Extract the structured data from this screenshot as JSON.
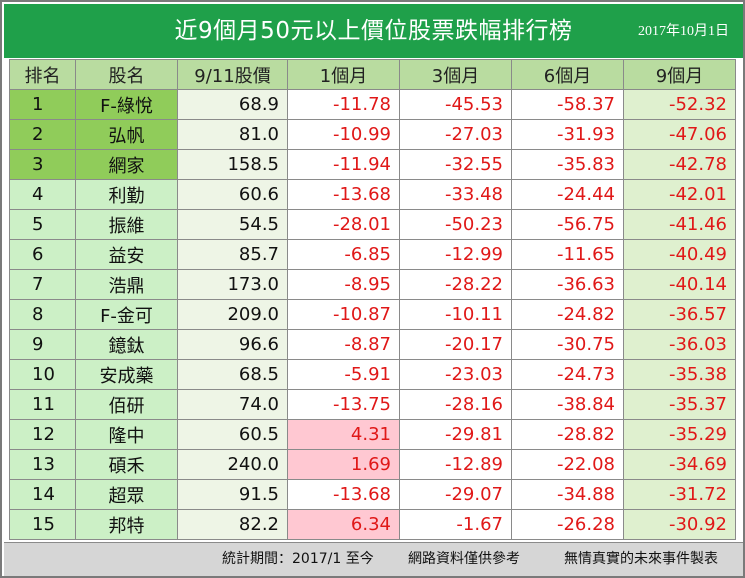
{
  "title": "近9個月50元以上價位股票跌幅排行榜",
  "date": "2017年10月1日",
  "headers": [
    "排名",
    "股名",
    "9/11股價",
    "1個月",
    "3個月",
    "6個月",
    "9個月"
  ],
  "rows": [
    {
      "rank": "1",
      "name": "F-綠悅",
      "price": "68.9",
      "m1": "-11.78",
      "m3": "-45.53",
      "m6": "-58.37",
      "m9": "-52.32"
    },
    {
      "rank": "2",
      "name": "弘帆",
      "price": "81.0",
      "m1": "-10.99",
      "m3": "-27.03",
      "m6": "-31.93",
      "m9": "-47.06"
    },
    {
      "rank": "3",
      "name": "網家",
      "price": "158.5",
      "m1": "-11.94",
      "m3": "-32.55",
      "m6": "-35.83",
      "m9": "-42.78"
    },
    {
      "rank": "4",
      "name": "利勤",
      "price": "60.6",
      "m1": "-13.68",
      "m3": "-33.48",
      "m6": "-24.44",
      "m9": "-42.01"
    },
    {
      "rank": "5",
      "name": "振維",
      "price": "54.5",
      "m1": "-28.01",
      "m3": "-50.23",
      "m6": "-56.75",
      "m9": "-41.46"
    },
    {
      "rank": "6",
      "name": "益安",
      "price": "85.7",
      "m1": "-6.85",
      "m3": "-12.99",
      "m6": "-11.65",
      "m9": "-40.49"
    },
    {
      "rank": "7",
      "name": "浩鼎",
      "price": "173.0",
      "m1": "-8.95",
      "m3": "-28.22",
      "m6": "-36.63",
      "m9": "-40.14"
    },
    {
      "rank": "8",
      "name": "F-金可",
      "price": "209.0",
      "m1": "-10.87",
      "m3": "-10.11",
      "m6": "-24.82",
      "m9": "-36.57"
    },
    {
      "rank": "9",
      "name": "鐿鈦",
      "price": "96.6",
      "m1": "-8.87",
      "m3": "-20.17",
      "m6": "-30.75",
      "m9": "-36.03"
    },
    {
      "rank": "10",
      "name": "安成藥",
      "price": "68.5",
      "m1": "-5.91",
      "m3": "-23.03",
      "m6": "-24.73",
      "m9": "-35.38"
    },
    {
      "rank": "11",
      "name": "佰研",
      "price": "74.0",
      "m1": "-13.75",
      "m3": "-28.16",
      "m6": "-38.84",
      "m9": "-35.37"
    },
    {
      "rank": "12",
      "name": "隆中",
      "price": "60.5",
      "m1": "4.31",
      "m3": "-29.81",
      "m6": "-28.82",
      "m9": "-35.29"
    },
    {
      "rank": "13",
      "name": "碩禾",
      "price": "240.0",
      "m1": "1.69",
      "m3": "-12.89",
      "m6": "-22.08",
      "m9": "-34.69"
    },
    {
      "rank": "14",
      "name": "超眾",
      "price": "91.5",
      "m1": "-13.68",
      "m3": "-29.07",
      "m6": "-34.88",
      "m9": "-31.72"
    },
    {
      "rank": "15",
      "name": "邦特",
      "price": "82.2",
      "m1": "6.34",
      "m3": "-1.67",
      "m6": "-26.28",
      "m9": "-30.92"
    }
  ],
  "footer": {
    "period": "統計期間：2017/1 至今",
    "source": "網路資料僅供參考",
    "credit": "無情真實的未來事件製表"
  },
  "colors": {
    "title_bg": "#1fa04a",
    "header_bg": "#b9dca0",
    "top3_bg": "#90cc5a",
    "rank_bg": "#ccf0c6",
    "negative_text": "#e01818",
    "positive_bg": "#ffc8d2",
    "footer_bg": "#d6d6d6"
  }
}
